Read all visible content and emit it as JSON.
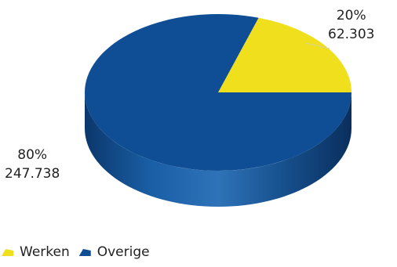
{
  "chart_data": {
    "type": "pie",
    "title": "",
    "series": [
      {
        "name": "Werken",
        "value": 62303,
        "value_label": "62.303",
        "percent_label": "20%",
        "color": "#EFDF1D"
      },
      {
        "name": "Overige",
        "value": 247738,
        "value_label": "247.738",
        "percent_label": "80%",
        "color": "#0F4E94"
      }
    ],
    "legend_position": "bottom-left",
    "style": "3d"
  }
}
